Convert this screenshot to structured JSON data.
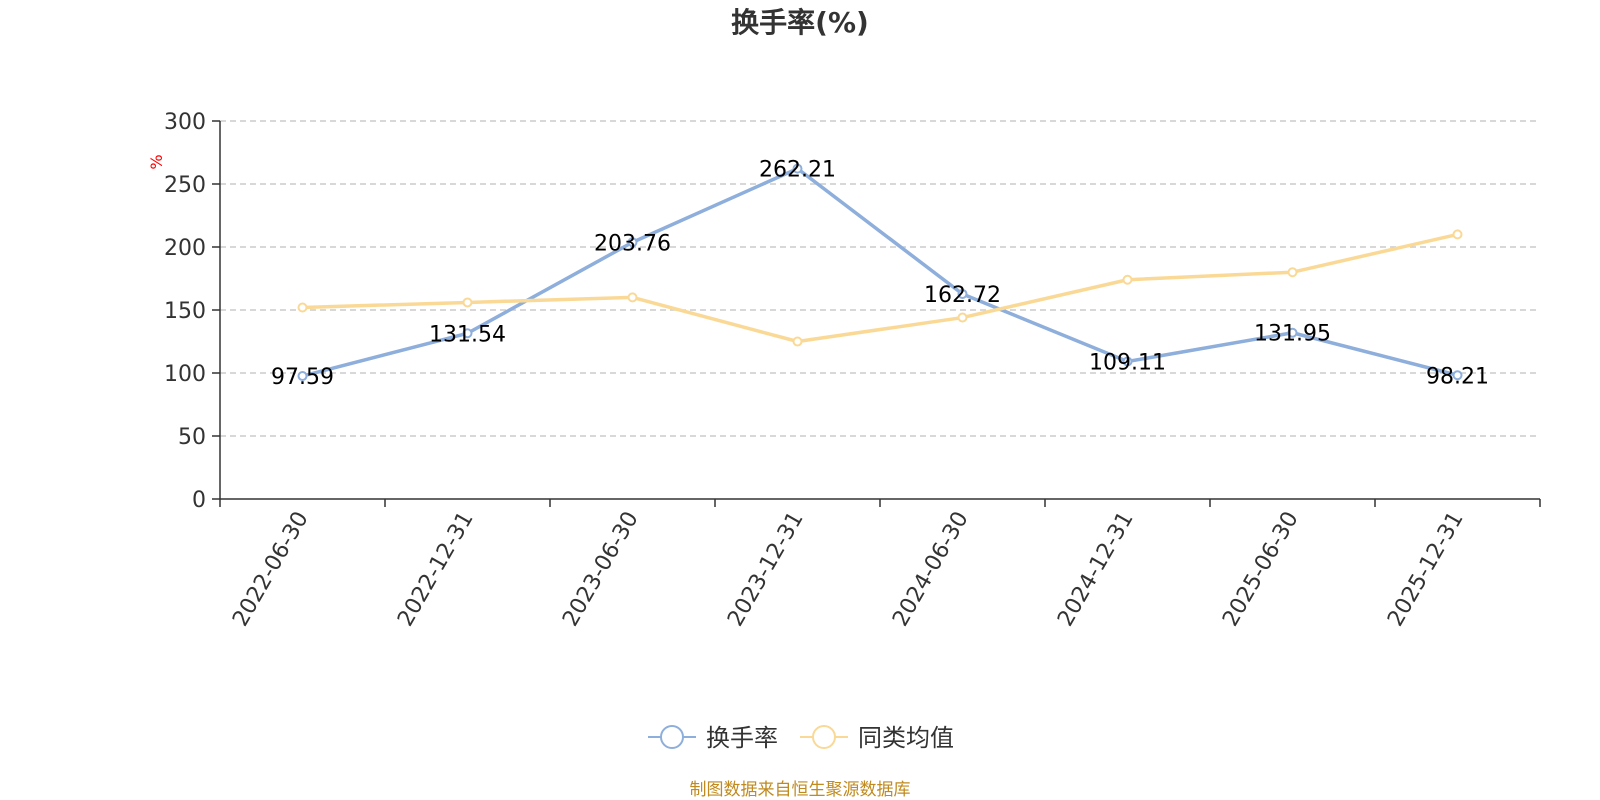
{
  "chart_data": {
    "type": "line",
    "title": "换手率(%)",
    "ylabel": "%",
    "ylim": [
      0,
      300
    ],
    "yticks": [
      0,
      50,
      100,
      150,
      200,
      250,
      300
    ],
    "grid": true,
    "categories": [
      "2022-06-30",
      "2022-12-31",
      "2023-06-30",
      "2023-12-31",
      "2024-06-30",
      "2024-12-31",
      "2025-06-30",
      "2025-12-31"
    ],
    "series": [
      {
        "name": "换手率",
        "color": "#8eaedb",
        "values": [
          97.59,
          131.54,
          203.76,
          262.21,
          162.72,
          109.11,
          131.95,
          98.21
        ],
        "labels": [
          "97.59",
          "131.54",
          "203.76",
          "262.21",
          "162.72",
          "109.11",
          "131.95",
          "98.21"
        ]
      },
      {
        "name": "同类均值",
        "color": "#fad996",
        "values": [
          152,
          156,
          160,
          125,
          144,
          174,
          180,
          210
        ]
      }
    ],
    "legend_position": "bottom",
    "source": "制图数据来自恒生聚源数据库"
  }
}
